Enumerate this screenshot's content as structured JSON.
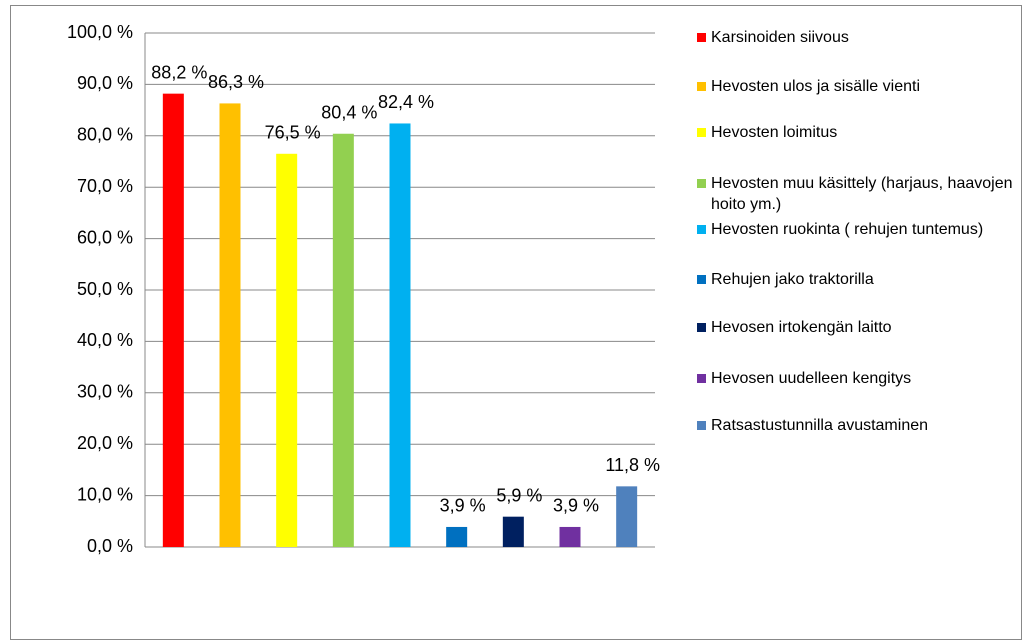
{
  "chart_data": {
    "type": "bar",
    "categories": [
      null
    ],
    "series": [
      {
        "name": "Karsinoiden siivous",
        "color": "#ff0000",
        "values": [
          88.2
        ],
        "value_labels": [
          "88,2 %"
        ]
      },
      {
        "name": "Hevosten ulos ja sisälle vienti",
        "color": "#ffc000",
        "values": [
          86.3
        ],
        "value_labels": [
          "86,3 %"
        ]
      },
      {
        "name": "Hevosten loimitus",
        "color": "#ffff00",
        "values": [
          76.5
        ],
        "value_labels": [
          "76,5 %"
        ]
      },
      {
        "name": "Hevosten muu käsittely (harjaus, haavojen hoito ym.)",
        "color": "#92d050",
        "values": [
          80.4
        ],
        "value_labels": [
          "80,4 %"
        ]
      },
      {
        "name": "Hevosten ruokinta ( rehujen tuntemus)",
        "color": "#00b0f0",
        "values": [
          82.4
        ],
        "value_labels": [
          "82,4 %"
        ]
      },
      {
        "name": "Rehujen jako traktorilla",
        "color": "#0070c0",
        "values": [
          3.9
        ],
        "value_labels": [
          "3,9 %"
        ]
      },
      {
        "name": "Hevosen irtokengän laitto",
        "color": "#002060",
        "values": [
          5.9
        ],
        "value_labels": [
          "5,9 %"
        ]
      },
      {
        "name": "Hevosen uudelleen kengitys",
        "color": "#7030a0",
        "values": [
          3.9
        ],
        "value_labels": [
          "3,9 %"
        ]
      },
      {
        "name": "Ratsastustunnilla avustaminen",
        "color": "#4f81bd",
        "values": [
          11.8
        ],
        "value_labels": [
          "11,8 %"
        ]
      }
    ],
    "ylim": [
      0,
      100
    ],
    "yticks": [
      {
        "value": 0,
        "label": "0,0 %"
      },
      {
        "value": 10,
        "label": "10,0 %"
      },
      {
        "value": 20,
        "label": "20,0 %"
      },
      {
        "value": 30,
        "label": "30,0 %"
      },
      {
        "value": 40,
        "label": "40,0 %"
      },
      {
        "value": 50,
        "label": "50,0 %"
      },
      {
        "value": 60,
        "label": "60,0 %"
      },
      {
        "value": 70,
        "label": "70,0 %"
      },
      {
        "value": 80,
        "label": "80,0 %"
      },
      {
        "value": 90,
        "label": "90,0 %"
      },
      {
        "value": 100,
        "label": "100,0 %"
      }
    ],
    "grid": true,
    "legend": "right"
  }
}
